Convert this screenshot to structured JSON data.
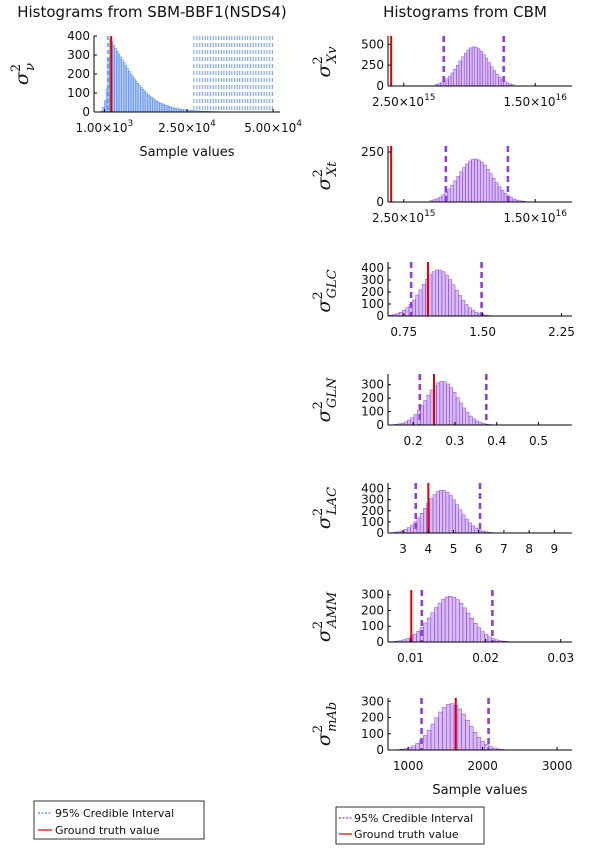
{
  "colors": {
    "left_series": "#4f86f0",
    "right_series": "#8f3fe0",
    "ground_truth": "#e00000",
    "axis": "#000000"
  },
  "titles": {
    "left": "Histograms from SBM-BBF1(NSDS4)",
    "right": "Histograms from CBM"
  },
  "legend": {
    "ci_label": "95% Credible Interval",
    "gt_label": "Ground truth value"
  },
  "chart_data": [
    {
      "id": "left",
      "type": "bar",
      "title": "Histograms from SBM-BBF1(NSDS4)",
      "ylabel": {
        "base": "σ",
        "sup": "2",
        "sub": "ν"
      },
      "xlabel": "Sample values",
      "xlim": [
        -2000,
        52000
      ],
      "ylim": [
        0,
        400
      ],
      "xticks": [
        {
          "v": 1000,
          "m": "1.00",
          "e": "3"
        },
        {
          "v": 25000,
          "m": "2.50",
          "e": "4"
        },
        {
          "v": 50000,
          "m": "5.00",
          "e": "4"
        }
      ],
      "yticks": [
        0,
        100,
        200,
        300,
        400
      ],
      "bins": {
        "start": 0,
        "width": 500,
        "counts": [
          5,
          25,
          60,
          120,
          280,
          385,
          370,
          350,
          335,
          320,
          305,
          290,
          275,
          260,
          245,
          230,
          215,
          200,
          187,
          175,
          163,
          151,
          140,
          130,
          120,
          110,
          101,
          92,
          84,
          77,
          70,
          64,
          58,
          53,
          48,
          44,
          40,
          36,
          33,
          30,
          27,
          24,
          22,
          20,
          18,
          16,
          14,
          13,
          12,
          11,
          10,
          9,
          8,
          7,
          6,
          6,
          5,
          5,
          4,
          4,
          4,
          3,
          3,
          3,
          2,
          2,
          2,
          2,
          2,
          1,
          1,
          1,
          1,
          1,
          1,
          1,
          1,
          1,
          1,
          1,
          1,
          1,
          1,
          1,
          1,
          1,
          1,
          1,
          1,
          1,
          1,
          1,
          1,
          1,
          1,
          1,
          1,
          1,
          1,
          1
        ]
      },
      "ci_lines": [
        1900,
        2300,
        27000,
        27900,
        28700,
        29500,
        30300,
        31000,
        31800,
        32600,
        33400,
        34200,
        35000,
        35700,
        36500,
        37300,
        38000,
        38800,
        39600,
        40300,
        41100,
        41900,
        42600,
        43400,
        44200,
        45000,
        45800,
        46600,
        47400,
        48200,
        49000,
        49800
      ],
      "ground_truth": 3000
    },
    {
      "id": "xv",
      "type": "bar",
      "ylabel": {
        "base": "σ",
        "sup": "2",
        "sub": "Xv"
      },
      "xlabel": "",
      "xlim": [
        1000000000000000.0,
        1.85e+16
      ],
      "ylim": [
        0,
        600
      ],
      "xticks": [
        {
          "v": 2500000000000000.0,
          "m": "2.50",
          "e": "15"
        },
        {
          "v": 1.5e+16,
          "m": "1.50",
          "e": "16"
        }
      ],
      "yticks": [
        0,
        250,
        500
      ],
      "hist": {
        "center": 9200000000000000.0,
        "sd": 1400000000000000.0,
        "peak": 470,
        "bins": 30,
        "from": 5500000000000000.0,
        "to": 1.3e+16
      },
      "ci": [
        6300000000000000.0,
        1.2e+16
      ],
      "ground_truth": 1300000000000000.0
    },
    {
      "id": "xt",
      "type": "bar",
      "ylabel": {
        "base": "σ",
        "sup": "2",
        "sub": "Xt"
      },
      "xlabel": "",
      "xlim": [
        1000000000000000.0,
        1.85e+16
      ],
      "ylim": [
        0,
        280
      ],
      "xticks": [
        {
          "v": 2500000000000000.0,
          "m": "2.50",
          "e": "15"
        },
        {
          "v": 1.5e+16,
          "m": "1.50",
          "e": "16"
        }
      ],
      "yticks": [
        0,
        250
      ],
      "hist": {
        "center": 9300000000000000.0,
        "sd": 1600000000000000.0,
        "peak": 215,
        "bins": 32,
        "from": 5000000000000000.0,
        "to": 1.4e+16
      },
      "ci": [
        6500000000000000.0,
        1.24e+16
      ],
      "ground_truth": 1300000000000000.0
    },
    {
      "id": "glc",
      "type": "bar",
      "ylabel": {
        "base": "σ",
        "sup": "2",
        "sub": "GLC"
      },
      "xlabel": "",
      "xlim": [
        0.6,
        2.35
      ],
      "ylim": [
        0,
        450
      ],
      "xticks": [
        {
          "v": 0.75,
          "t": "0.75"
        },
        {
          "v": 1.5,
          "t": "1.50"
        },
        {
          "v": 2.25,
          "t": "2.25"
        }
      ],
      "yticks": [
        0,
        100,
        200,
        300,
        400
      ],
      "hist": {
        "center": 1.08,
        "sd": 0.16,
        "peak": 385,
        "bins": 40,
        "from": 0.55,
        "to": 1.8
      },
      "ci": [
        0.82,
        1.49
      ],
      "ground_truth": 0.98
    },
    {
      "id": "gln",
      "type": "bar",
      "ylabel": {
        "base": "σ",
        "sup": "2",
        "sub": "GLN"
      },
      "xlabel": "",
      "xlim": [
        0.14,
        0.58
      ],
      "ylim": [
        0,
        380
      ],
      "xticks": [
        {
          "v": 0.2,
          "t": "0.2"
        },
        {
          "v": 0.3,
          "t": "0.3"
        },
        {
          "v": 0.4,
          "t": "0.4"
        },
        {
          "v": 0.5,
          "t": "0.5"
        }
      ],
      "yticks": [
        0,
        100,
        200,
        300
      ],
      "hist": {
        "center": 0.27,
        "sd": 0.038,
        "peak": 325,
        "bins": 40,
        "from": 0.14,
        "to": 0.45
      },
      "ci": [
        0.216,
        0.375
      ],
      "ground_truth": 0.25
    },
    {
      "id": "lac",
      "type": "bar",
      "ylabel": {
        "base": "σ",
        "sup": "2",
        "sub": "LAC"
      },
      "xlabel": "",
      "xlim": [
        2.4,
        9.7
      ],
      "ylim": [
        0,
        450
      ],
      "xticks": [
        {
          "v": 3,
          "t": "3"
        },
        {
          "v": 4,
          "t": "4"
        },
        {
          "v": 5,
          "t": "5"
        },
        {
          "v": 6,
          "t": "6"
        },
        {
          "v": 7,
          "t": "7"
        },
        {
          "v": 8,
          "t": "8"
        },
        {
          "v": 9,
          "t": "9"
        }
      ],
      "yticks": [
        0,
        100,
        200,
        300,
        400
      ],
      "hist": {
        "center": 4.55,
        "sd": 0.65,
        "peak": 385,
        "bins": 40,
        "from": 2.4,
        "to": 7.5
      },
      "ci": [
        3.5,
        6.05
      ],
      "ground_truth": 4.0
    },
    {
      "id": "amm",
      "type": "bar",
      "ylabel": {
        "base": "σ",
        "sup": "2",
        "sub": "AMM"
      },
      "xlabel": "",
      "xlim": [
        0.007,
        0.0315
      ],
      "ylim": [
        0,
        330
      ],
      "xticks": [
        {
          "v": 0.01,
          "t": "0.01"
        },
        {
          "v": 0.02,
          "t": "0.02"
        },
        {
          "v": 0.03,
          "t": "0.03"
        }
      ],
      "yticks": [
        0,
        100,
        200,
        300
      ],
      "hist": {
        "center": 0.0153,
        "sd": 0.0025,
        "peak": 290,
        "bins": 40,
        "from": 0.007,
        "to": 0.026
      },
      "ci": [
        0.0115,
        0.0209
      ],
      "ground_truth": 0.0101
    },
    {
      "id": "mab",
      "type": "bar",
      "ylabel": {
        "base": "σ",
        "sup": "2",
        "sub": "mAb"
      },
      "xlabel": "Sample values",
      "xlim": [
        730,
        3200
      ],
      "ylim": [
        0,
        320
      ],
      "xticks": [
        {
          "v": 1000,
          "t": "1000"
        },
        {
          "v": 2000,
          "t": "2000"
        },
        {
          "v": 3000,
          "t": "3000"
        }
      ],
      "yticks": [
        0,
        100,
        200,
        300
      ],
      "hist": {
        "center": 1580,
        "sd": 230,
        "peak": 285,
        "bins": 40,
        "from": 740,
        "to": 2800
      },
      "ci": [
        1180,
        2080
      ],
      "ground_truth": 1640
    }
  ]
}
